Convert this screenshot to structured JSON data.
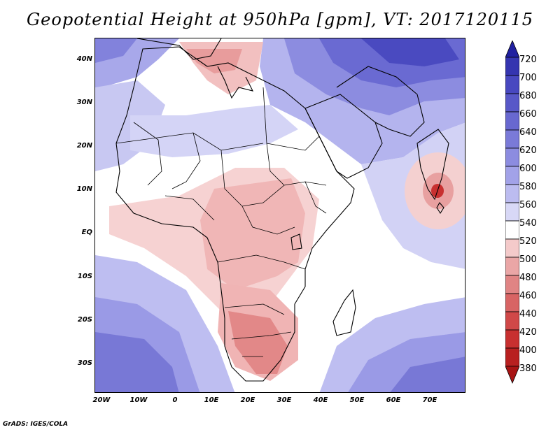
{
  "title": "Geopotential Height at 950hPa [gpm], VT: 2017120115",
  "credit": "GrADS: IGES/COLA",
  "map": {
    "lat_labels": [
      "40N",
      "30N",
      "20N",
      "10N",
      "EQ",
      "10S",
      "20S",
      "30S"
    ],
    "lon_labels": [
      "20W",
      "10W",
      "0",
      "10E",
      "20E",
      "30E",
      "40E",
      "50E",
      "60E",
      "70E"
    ]
  },
  "colorbar": {
    "levels": [
      "720",
      "700",
      "680",
      "660",
      "640",
      "620",
      "600",
      "580",
      "560",
      "540",
      "520",
      "500",
      "480",
      "460",
      "440",
      "420",
      "400",
      "380"
    ],
    "colors": [
      "#2020a0",
      "#3535b0",
      "#4848c0",
      "#5858c8",
      "#6868d0",
      "#7a7ad8",
      "#8c8ce0",
      "#a2a2e8",
      "#bcbcf0",
      "#d8d8f6",
      "#ffffff",
      "#f4caca",
      "#eaa6a6",
      "#e08484",
      "#d86464",
      "#d04848",
      "#c83030",
      "#b82020",
      "#a81414"
    ]
  }
}
